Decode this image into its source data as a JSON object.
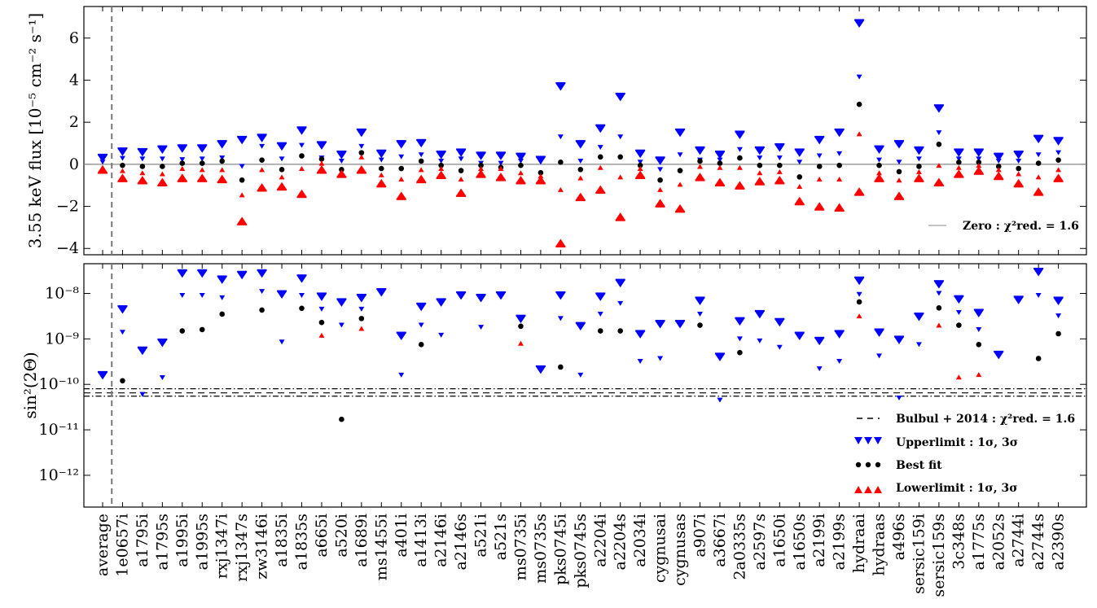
{
  "chart_data": [
    {
      "type": "scatter",
      "ylabel": "3.55 keV flux [10⁻⁵ cm⁻² s⁻¹]",
      "ylim": [
        -4.3,
        7.5
      ],
      "yticks": [
        -4,
        -2,
        0,
        2,
        4,
        6
      ],
      "ytick_labels": [
        "−4",
        "−2",
        "0",
        "2",
        "4",
        "6"
      ],
      "categories": [
        "average",
        "1e0657i",
        "a1795i",
        "a1795s",
        "a1995i",
        "a1995s",
        "rxj1347i",
        "rxj1347s",
        "zw3146i",
        "a1835i",
        "a1835s",
        "a665i",
        "a520i",
        "a1689i",
        "ms1455i",
        "a401i",
        "a1413i",
        "a2146i",
        "a2146s",
        "a521i",
        "a521s",
        "ms0735i",
        "ms0735s",
        "pks0745i",
        "pks0745s",
        "a2204i",
        "a2204s",
        "a2034i",
        "cygnusai",
        "cygnusas",
        "a907i",
        "a3667i",
        "2a0335s",
        "a2597s",
        "a1650i",
        "a1650s",
        "a2199i",
        "a2199s",
        "hydraai",
        "hydraas",
        "a496s",
        "sersic159i",
        "sersic159s",
        "3c348s",
        "a1775s",
        "a2052s",
        "a2744i",
        "a2744s",
        "a2390s"
      ],
      "series": [
        {
          "name": "Upperlimit : 1σ",
          "marker": "down-triangle-small",
          "color": "#0000ff",
          "values": [
            0.1,
            0.28,
            0.25,
            0.25,
            0.22,
            0.25,
            0.3,
            -0.1,
            0.85,
            0.25,
            0.9,
            0.3,
            0.15,
            0.85,
            0.2,
            0.35,
            0.45,
            0.15,
            0.25,
            0.05,
            0.05,
            0.15,
            0.1,
            1.3,
            0.15,
            0.8,
            1.3,
            0.1,
            -0.25,
            0.45,
            0.2,
            0.2,
            0.7,
            0.3,
            0.3,
            0.1,
            0.4,
            0.5,
            4.15,
            0.2,
            0.1,
            0.25,
            1.5,
            0.25,
            0.25,
            0.15,
            0.15,
            0.45,
            0.55
          ]
        },
        {
          "name": "Upperlimit : 3σ",
          "marker": "down-triangle-large",
          "color": "#0000ff",
          "values": [
            0.25,
            0.55,
            0.52,
            0.65,
            0.7,
            0.7,
            0.9,
            1.1,
            1.2,
            0.8,
            1.55,
            0.85,
            0.4,
            1.45,
            0.45,
            0.9,
            0.95,
            0.4,
            0.5,
            0.35,
            0.35,
            0.3,
            0.15,
            3.65,
            0.9,
            1.65,
            3.15,
            0.45,
            0.12,
            1.45,
            0.6,
            0.4,
            1.35,
            0.6,
            0.75,
            0.5,
            1.1,
            1.45,
            6.65,
            0.65,
            0.9,
            0.6,
            2.6,
            0.5,
            0.5,
            0.3,
            0.4,
            1.15,
            1.05
          ]
        },
        {
          "name": "Best fit",
          "marker": "dot",
          "color": "#000000",
          "values": [
            null,
            -0.05,
            -0.1,
            -0.1,
            0.05,
            0.05,
            0.15,
            -0.75,
            0.2,
            -0.25,
            0.4,
            0.25,
            -0.25,
            0.55,
            -0.2,
            -0.2,
            0.15,
            -0.05,
            -0.3,
            -0.05,
            -0.15,
            -0.05,
            -0.4,
            0.1,
            -0.25,
            0.35,
            0.35,
            -0.05,
            -0.75,
            -0.3,
            0.15,
            0.05,
            0.3,
            -0.05,
            -0.05,
            -0.6,
            -0.1,
            -0.05,
            2.85,
            -0.05,
            -0.35,
            -0.1,
            0.95,
            0.1,
            0.1,
            -0.1,
            -0.2,
            0.05,
            0.2
          ]
        },
        {
          "name": "Lowerlimit : 1σ",
          "marker": "up-triangle-small",
          "color": "#ff0000",
          "values": [
            -0.15,
            -0.3,
            -0.4,
            -0.45,
            -0.2,
            -0.25,
            -0.25,
            -1.45,
            -0.25,
            -0.6,
            -0.2,
            0.05,
            -0.45,
            0.35,
            -0.5,
            -0.7,
            -0.25,
            -0.2,
            -0.7,
            -0.2,
            -0.2,
            -0.4,
            -0.55,
            -1.2,
            -0.65,
            -0.15,
            -0.6,
            -0.2,
            -1.2,
            -0.95,
            -0.1,
            -0.15,
            -0.15,
            -0.4,
            -0.35,
            -1.05,
            -0.7,
            -0.7,
            1.45,
            -0.4,
            -0.75,
            -0.35,
            -0.05,
            -0.15,
            -0.05,
            -0.25,
            -0.45,
            -0.6,
            -0.25
          ]
        },
        {
          "name": "Lowerlimit : 3σ",
          "marker": "up-triangle-large",
          "color": "#ff0000",
          "values": [
            -0.2,
            -0.6,
            -0.7,
            -0.8,
            -0.6,
            -0.6,
            -0.65,
            -2.65,
            -1.05,
            -1.0,
            -1.35,
            -0.2,
            -0.4,
            -0.2,
            -0.85,
            -1.45,
            -0.65,
            -0.45,
            -1.3,
            -0.4,
            -0.55,
            -0.7,
            -0.7,
            -3.7,
            -1.5,
            -1.15,
            -2.45,
            -0.45,
            -1.8,
            -2.05,
            -0.55,
            -0.8,
            -0.95,
            -0.75,
            -0.7,
            -1.7,
            -1.95,
            -2.0,
            -1.25,
            -0.6,
            -1.45,
            -0.6,
            -0.8,
            -0.4,
            -0.25,
            -0.5,
            -0.85,
            -1.25,
            -0.6
          ]
        }
      ],
      "reference_lines": [
        {
          "y": 0,
          "style": "solid",
          "color": "#888888"
        }
      ],
      "vline_after_category": "average",
      "legend": {
        "placement": "lower-right",
        "entries": [
          {
            "label": "Zero : χ²red. = 1.6",
            "style": "solid-line"
          }
        ]
      }
    },
    {
      "type": "scatter",
      "yscale": "log",
      "ylabel": "sin²(2Θ)",
      "ylim": [
        2e-13,
        4.5e-08
      ],
      "yticks": [
        1e-12,
        1e-11,
        1e-10,
        1e-09,
        1e-08
      ],
      "ytick_labels": [
        "10⁻¹²",
        "10⁻¹¹",
        "10⁻¹⁰",
        "10⁻⁹",
        "10⁻⁸"
      ],
      "categories_shared_with_above": true,
      "series": [
        {
          "name": "Upperlimit : 1σ",
          "marker": "down-triangle-small",
          "color": "#0000ff",
          "values": [
            null,
            1.4e-09,
            6e-11,
            1.4e-10,
            9e-09,
            9e-09,
            8e-09,
            null,
            1.1e-08,
            8.5e-10,
            9e-09,
            4.5e-09,
            2e-09,
            4.5e-09,
            null,
            1.6e-10,
            2e-09,
            1.2e-09,
            null,
            1.8e-09,
            null,
            null,
            null,
            2.8e-09,
            1.6e-10,
            3.5e-09,
            6e-09,
            3.2e-10,
            3.7e-10,
            null,
            3.5e-09,
            4.5e-11,
            1e-09,
            9e-10,
            6.5e-10,
            null,
            2.2e-10,
            3.2e-10,
            9.5e-09,
            4.2e-10,
            5e-11,
            7.5e-10,
            1e-08,
            3.8e-09,
            1.6e-09,
            null,
            null,
            9e-09,
            3.2e-09
          ]
        },
        {
          "name": "Upperlimit : 3σ",
          "marker": "down-triangle-large",
          "color": "#0000ff",
          "values": [
            1.5e-10,
            4.2e-09,
            5.2e-10,
            7.8e-10,
            2.6e-08,
            2.6e-08,
            1.9e-08,
            2.4e-08,
            2.6e-08,
            9e-09,
            2e-08,
            8e-09,
            6e-09,
            7.5e-09,
            1e-08,
            1.1e-09,
            4.8e-09,
            6e-09,
            8.5e-09,
            7.5e-09,
            8.5e-09,
            2.6e-09,
            2e-10,
            8.5e-09,
            1.8e-09,
            8e-09,
            1.6e-08,
            1.2e-09,
            2e-09,
            2e-09,
            6.5e-09,
            3.8e-10,
            2.3e-09,
            3.3e-09,
            2.2e-09,
            1.1e-09,
            8.5e-10,
            1.2e-09,
            1.8e-08,
            1.3e-09,
            9e-10,
            2.9e-09,
            1.5e-08,
            7e-09,
            3.5e-09,
            4.2e-10,
            6.8e-09,
            2.8e-08,
            6.5e-09
          ]
        },
        {
          "name": "Best fit",
          "marker": "dot",
          "color": "#000000",
          "values": [
            null,
            1.2e-10,
            null,
            null,
            1.5e-09,
            1.6e-09,
            3.5e-09,
            null,
            4.3e-09,
            null,
            4.7e-09,
            2.3e-09,
            1.7e-11,
            2.8e-09,
            null,
            null,
            7.5e-10,
            null,
            null,
            null,
            null,
            1.9e-09,
            null,
            2.4e-10,
            null,
            1.5e-09,
            1.5e-09,
            null,
            null,
            null,
            2e-09,
            null,
            5e-10,
            null,
            null,
            null,
            null,
            null,
            6.5e-09,
            null,
            null,
            null,
            4.8e-09,
            2e-09,
            7.5e-10,
            null,
            null,
            3.7e-10,
            1.3e-09
          ]
        },
        {
          "name": "Lowerlimit : 1σ",
          "marker": "up-triangle-small",
          "color": "#ff0000",
          "values": [
            null,
            null,
            null,
            null,
            null,
            null,
            null,
            null,
            null,
            null,
            null,
            1.2e-09,
            null,
            1.7e-09,
            null,
            null,
            null,
            null,
            null,
            null,
            null,
            8e-10,
            null,
            null,
            null,
            null,
            null,
            null,
            null,
            null,
            null,
            null,
            null,
            null,
            null,
            null,
            null,
            null,
            3.2e-09,
            null,
            null,
            null,
            2e-09,
            1.45e-10,
            1.65e-10,
            null,
            null,
            null,
            null
          ]
        }
      ],
      "reference_lines": [
        {
          "y": 8e-11,
          "style": "dash-dot",
          "color": "#000000"
        },
        {
          "y": 6.5e-11,
          "style": "dashed",
          "color": "#000000"
        },
        {
          "y": 5.5e-11,
          "style": "dash-dot",
          "color": "#000000"
        }
      ],
      "vline_after_category": "average",
      "legend": {
        "placement": "lower-right",
        "entries": [
          {
            "label": "Bulbul + 2014 : χ²red. = 1.6",
            "style": "dashed-line"
          },
          {
            "label": "Upperlimit : 1σ, 3σ",
            "style": "down-triangles"
          },
          {
            "label": "Best fit",
            "style": "dots"
          },
          {
            "label": "Lowerlimit : 1σ, 3σ",
            "style": "up-triangles"
          }
        ]
      }
    }
  ]
}
